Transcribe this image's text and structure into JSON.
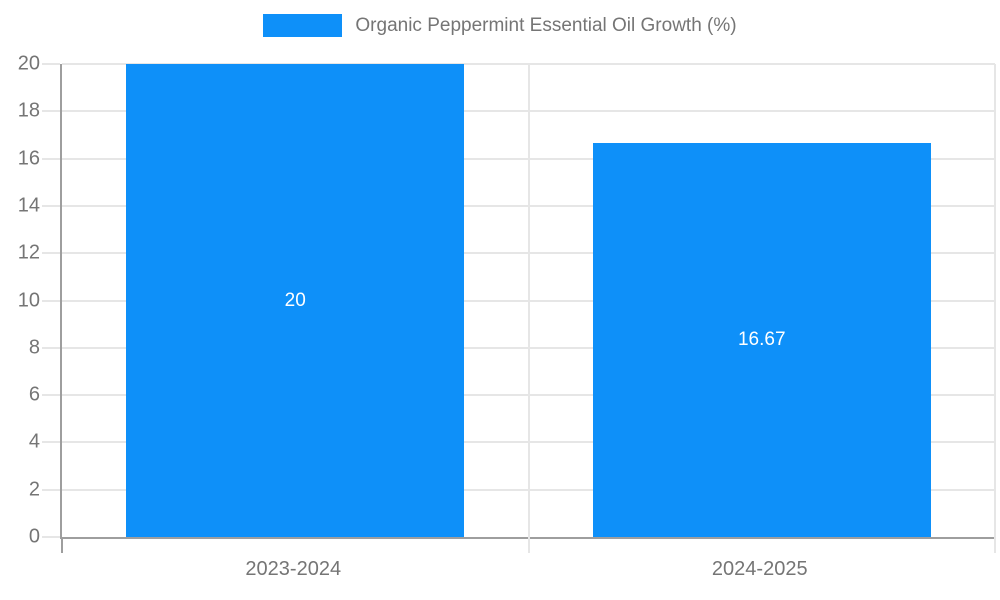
{
  "chart_data": {
    "type": "bar",
    "title": "Organic Peppermint Essential Oil Growth (%)",
    "categories": [
      "2023-2024",
      "2024-2025"
    ],
    "series": [
      {
        "name": "Organic Peppermint Essential Oil Growth (%)",
        "values": [
          20,
          16.67
        ],
        "value_labels": [
          "20",
          "16.67"
        ]
      }
    ],
    "xlabel": "",
    "ylabel": "",
    "ylim": [
      0,
      20
    ],
    "yticks": [
      0,
      2,
      4,
      6,
      8,
      10,
      12,
      14,
      16,
      18,
      20
    ],
    "grid": true,
    "legend_position": "top-center",
    "colors": {
      "bar": "#0E90F9",
      "grid": "#e6e6e6",
      "axis": "#9e9e9e",
      "tick_label": "#757575",
      "legend_text": "#757575",
      "bar_value_label": "#ffffff",
      "background": "#ffffff"
    }
  }
}
